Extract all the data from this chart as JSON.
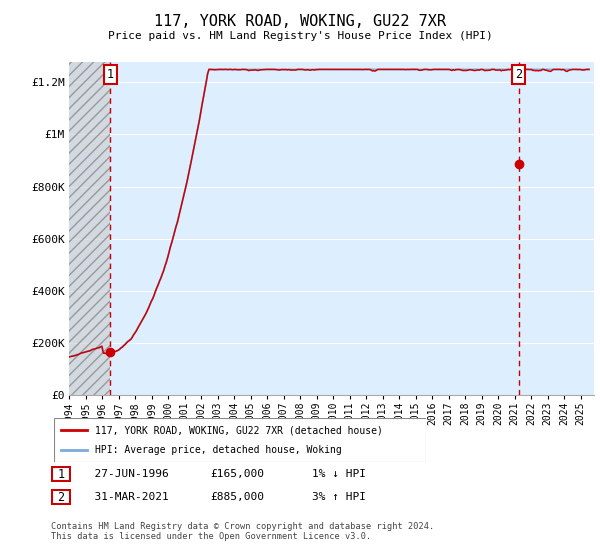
{
  "title": "117, YORK ROAD, WOKING, GU22 7XR",
  "subtitle": "Price paid vs. HM Land Registry's House Price Index (HPI)",
  "ylabel_ticks": [
    "£0",
    "£200K",
    "£400K",
    "£600K",
    "£800K",
    "£1M",
    "£1.2M"
  ],
  "ytick_values": [
    0,
    200000,
    400000,
    600000,
    800000,
    1000000,
    1200000
  ],
  "ylim": [
    0,
    1280000
  ],
  "xlim_start": 1994.0,
  "xlim_end": 2025.8,
  "sale1_x": 1996.49,
  "sale1_y": 165000,
  "sale2_x": 2021.25,
  "sale2_y": 885000,
  "line_color_hpi": "#7aabdc",
  "line_color_price": "#cc0000",
  "dashed_line_color": "#cc0000",
  "bg_color": "#ddeeff",
  "grid_color": "#ffffff",
  "legend_label1": "117, YORK ROAD, WOKING, GU22 7XR (detached house)",
  "legend_label2": "HPI: Average price, detached house, Woking",
  "table_row1": [
    "1",
    "27-JUN-1996",
    "£165,000",
    "1% ↓ HPI"
  ],
  "table_row2": [
    "2",
    "31-MAR-2021",
    "£885,000",
    "3% ↑ HPI"
  ],
  "footer": "Contains HM Land Registry data © Crown copyright and database right 2024.\nThis data is licensed under the Open Government Licence v3.0.",
  "xtick_years": [
    1994,
    1995,
    1996,
    1997,
    1998,
    1999,
    2000,
    2001,
    2002,
    2003,
    2004,
    2005,
    2006,
    2007,
    2008,
    2009,
    2010,
    2011,
    2012,
    2013,
    2014,
    2015,
    2016,
    2017,
    2018,
    2019,
    2020,
    2021,
    2022,
    2023,
    2024,
    2025
  ]
}
